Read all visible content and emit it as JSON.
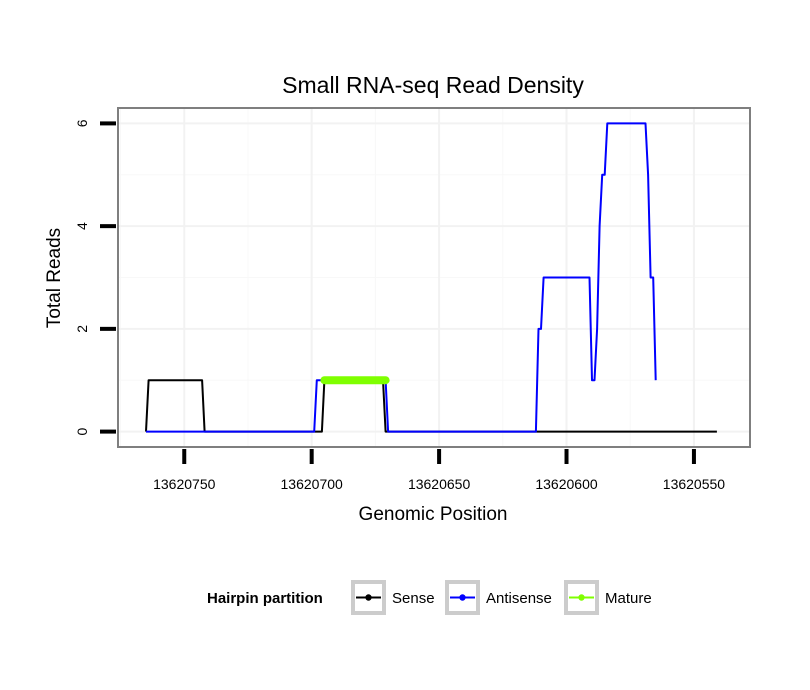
{
  "chart_data": {
    "type": "line",
    "title": "Small RNA-seq Read Density",
    "xlabel": "Genomic Position",
    "ylabel": "Total Reads",
    "x_reversed": true,
    "xlim": [
      13620776,
      13620528
    ],
    "ylim": [
      -0.3,
      6.3
    ],
    "x_ticks": [
      13620750,
      13620700,
      13620650,
      13620600,
      13620550
    ],
    "x_tick_labels": [
      "13620750",
      "13620700",
      "13620650",
      "13620600",
      "13620550"
    ],
    "y_ticks": [
      0,
      2,
      4,
      6
    ],
    "y_tick_labels": [
      "0",
      "2",
      "4",
      "6"
    ],
    "grid": true,
    "legend": {
      "title": "Hairpin partition",
      "position": "bottom",
      "entries": [
        "Sense",
        "Antisense",
        "Mature"
      ]
    },
    "series": [
      {
        "name": "Sense",
        "color": "#000000",
        "points": [
          [
            13620765,
            0
          ],
          [
            13620764,
            1
          ],
          [
            13620743,
            1
          ],
          [
            13620742,
            0
          ],
          [
            13620696,
            0
          ],
          [
            13620695,
            1
          ],
          [
            13620672,
            1
          ],
          [
            13620671,
            0
          ],
          [
            13620541,
            0
          ]
        ]
      },
      {
        "name": "Antisense",
        "color": "#0000ff",
        "points": [
          [
            13620765,
            0
          ],
          [
            13620699,
            0
          ],
          [
            13620698,
            1
          ],
          [
            13620695,
            1
          ],
          [
            13620671,
            1
          ],
          [
            13620670,
            0
          ],
          [
            13620612,
            0
          ],
          [
            13620611,
            2
          ],
          [
            13620610,
            2
          ],
          [
            13620609,
            3
          ],
          [
            13620591,
            3
          ],
          [
            13620590,
            1
          ],
          [
            13620589,
            1
          ],
          [
            13620588,
            2
          ],
          [
            13620587,
            4
          ],
          [
            13620586,
            5
          ],
          [
            13620585,
            5
          ],
          [
            13620584,
            6
          ],
          [
            13620569,
            6
          ],
          [
            13620568,
            5
          ],
          [
            13620567,
            3
          ],
          [
            13620566,
            3
          ],
          [
            13620565,
            1
          ]
        ]
      },
      {
        "name": "Mature",
        "color": "#7fff00",
        "points": [
          [
            13620695,
            1
          ],
          [
            13620671,
            1
          ]
        ]
      }
    ]
  }
}
